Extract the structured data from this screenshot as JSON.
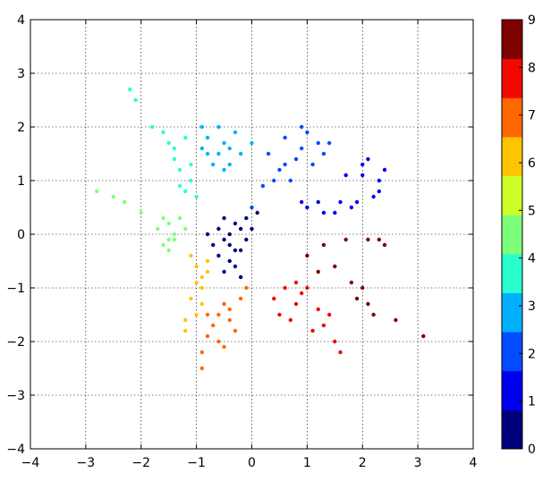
{
  "chart_data": {
    "type": "scatter",
    "title": "",
    "xlabel": "",
    "ylabel": "",
    "xlim": [
      -4,
      4
    ],
    "ylim": [
      -4,
      4
    ],
    "grid": true,
    "x_ticks": [
      -4,
      -3,
      -2,
      -1,
      0,
      1,
      2,
      3,
      4
    ],
    "y_ticks": [
      -4,
      -3,
      -2,
      -1,
      0,
      1,
      2,
      3,
      4
    ],
    "x_tick_labels": [
      "−4",
      "−3",
      "−2",
      "−1",
      "0",
      "1",
      "2",
      "3",
      "4"
    ],
    "y_tick_labels": [
      "−4",
      "−3",
      "−2",
      "−1",
      "0",
      "1",
      "2",
      "3",
      "4"
    ],
    "colormap": "jet",
    "colorbar": {
      "location": "right",
      "range": [
        0,
        9
      ],
      "ticks": [
        0,
        1,
        2,
        3,
        4,
        5,
        6,
        7,
        8,
        9
      ],
      "tick_labels": [
        "0",
        "1",
        "2",
        "3",
        "4",
        "5",
        "6",
        "7",
        "8",
        "9"
      ],
      "colors": [
        "#00007f",
        "#0000f1",
        "#004cff",
        "#00b0ff",
        "#29ffce",
        "#7dff7a",
        "#ceff29",
        "#ffc400",
        "#ff6700",
        "#f10800",
        "#7f0000"
      ]
    },
    "series": [
      {
        "class": 0,
        "color": "#00007f",
        "points": [
          [
            -0.3,
            0.2
          ],
          [
            -0.5,
            -0.1
          ],
          [
            -0.2,
            -0.3
          ],
          [
            -0.6,
            0.1
          ],
          [
            -0.4,
            -0.5
          ],
          [
            -0.1,
            0.3
          ],
          [
            -0.7,
            -0.2
          ],
          [
            -0.3,
            -0.6
          ],
          [
            0.0,
            0.1
          ],
          [
            -0.5,
            0.3
          ],
          [
            -0.2,
            -0.8
          ],
          [
            -0.6,
            -0.4
          ],
          [
            -0.4,
            0.0
          ],
          [
            -0.1,
            -0.1
          ],
          [
            -0.8,
            0.0
          ],
          [
            -0.3,
            -0.3
          ],
          [
            0.1,
            0.4
          ],
          [
            -0.5,
            -0.7
          ],
          [
            -0.2,
            0.1
          ],
          [
            -0.4,
            -0.2
          ]
        ]
      },
      {
        "class": 1,
        "color": "#0000f1",
        "points": [
          [
            1.5,
            0.4
          ],
          [
            1.0,
            0.5
          ],
          [
            2.0,
            1.3
          ],
          [
            2.3,
            1.0
          ],
          [
            2.2,
            0.7
          ],
          [
            1.8,
            0.5
          ],
          [
            1.3,
            0.4
          ],
          [
            2.4,
            1.2
          ],
          [
            1.7,
            1.1
          ],
          [
            1.2,
            0.6
          ],
          [
            2.1,
            1.4
          ],
          [
            1.9,
            0.6
          ],
          [
            0.9,
            0.6
          ],
          [
            2.3,
            0.8
          ],
          [
            1.6,
            0.6
          ],
          [
            2.0,
            1.1
          ]
        ]
      },
      {
        "class": 2,
        "color": "#004cff",
        "points": [
          [
            0.3,
            1.5
          ],
          [
            0.6,
            1.8
          ],
          [
            0.9,
            2.0
          ],
          [
            1.2,
            1.7
          ],
          [
            0.5,
            1.2
          ],
          [
            0.8,
            1.4
          ],
          [
            1.0,
            1.9
          ],
          [
            0.2,
            0.9
          ],
          [
            0.4,
            1.0
          ],
          [
            1.1,
            1.3
          ],
          [
            0.7,
            1.0
          ],
          [
            1.3,
            1.5
          ],
          [
            0.9,
            1.6
          ],
          [
            0.6,
            1.3
          ],
          [
            1.4,
            1.7
          ],
          [
            0.0,
            0.5
          ]
        ]
      },
      {
        "class": 3,
        "color": "#00b0ff",
        "points": [
          [
            -0.6,
            1.5
          ],
          [
            -0.8,
            1.8
          ],
          [
            -0.4,
            1.6
          ],
          [
            -0.9,
            2.0
          ],
          [
            -0.5,
            1.2
          ],
          [
            -0.3,
            1.9
          ],
          [
            -0.7,
            1.3
          ],
          [
            -0.2,
            1.5
          ],
          [
            -0.6,
            2.0
          ],
          [
            -0.4,
            1.3
          ],
          [
            -0.8,
            1.5
          ],
          [
            -0.5,
            1.7
          ],
          [
            0.0,
            1.7
          ],
          [
            -0.9,
            1.6
          ]
        ]
      },
      {
        "class": 4,
        "color": "#29ffce",
        "points": [
          [
            -1.5,
            1.7
          ],
          [
            -1.2,
            0.8
          ],
          [
            -1.3,
            1.2
          ],
          [
            -1.6,
            1.9
          ],
          [
            -1.1,
            1.0
          ],
          [
            -1.4,
            1.4
          ],
          [
            -1.2,
            1.8
          ],
          [
            -1.0,
            0.7
          ],
          [
            -1.8,
            2.0
          ],
          [
            -1.3,
            0.9
          ],
          [
            -2.1,
            2.5
          ],
          [
            -1.1,
            1.3
          ],
          [
            -1.4,
            1.6
          ],
          [
            -2.2,
            2.7
          ]
        ]
      },
      {
        "class": 5,
        "color": "#7dff7a",
        "points": [
          [
            -1.5,
            0.2
          ],
          [
            -1.6,
            -0.2
          ],
          [
            -1.4,
            0.0
          ],
          [
            -1.3,
            0.3
          ],
          [
            -1.5,
            -0.3
          ],
          [
            -1.7,
            0.1
          ],
          [
            -2.0,
            0.4
          ],
          [
            -2.5,
            0.7
          ],
          [
            -2.8,
            0.8
          ],
          [
            -1.4,
            -0.1
          ],
          [
            -1.2,
            0.1
          ],
          [
            -1.6,
            0.3
          ],
          [
            -2.3,
            0.6
          ],
          [
            -1.5,
            -0.1
          ]
        ]
      },
      {
        "class": 6,
        "color": "#ffc400",
        "points": [
          [
            -1.0,
            -0.6
          ],
          [
            -0.9,
            -1.0
          ],
          [
            -0.8,
            -0.5
          ],
          [
            -1.1,
            -1.2
          ],
          [
            -0.9,
            -0.8
          ],
          [
            -1.0,
            -1.5
          ],
          [
            -1.2,
            -1.8
          ],
          [
            -0.8,
            -0.7
          ],
          [
            -1.1,
            -0.4
          ],
          [
            -0.9,
            -1.3
          ],
          [
            -1.0,
            -0.9
          ],
          [
            -1.2,
            -1.6
          ]
        ]
      },
      {
        "class": 7,
        "color": "#ff6700",
        "points": [
          [
            -0.6,
            -1.5
          ],
          [
            -0.8,
            -1.9
          ],
          [
            -0.4,
            -1.6
          ],
          [
            -0.9,
            -2.2
          ],
          [
            -0.5,
            -1.3
          ],
          [
            -0.3,
            -1.8
          ],
          [
            -0.7,
            -1.7
          ],
          [
            -0.2,
            -1.2
          ],
          [
            -0.9,
            -2.5
          ],
          [
            -0.6,
            -2.0
          ],
          [
            -0.4,
            -1.4
          ],
          [
            -0.8,
            -1.5
          ],
          [
            -0.5,
            -2.1
          ],
          [
            -0.1,
            -1.0
          ]
        ]
      },
      {
        "class": 8,
        "color": "#f10800",
        "points": [
          [
            0.6,
            -1.0
          ],
          [
            0.8,
            -1.3
          ],
          [
            1.0,
            -1.0
          ],
          [
            0.5,
            -1.5
          ],
          [
            1.2,
            -1.4
          ],
          [
            0.7,
            -1.6
          ],
          [
            1.3,
            -1.7
          ],
          [
            0.9,
            -1.1
          ],
          [
            1.5,
            -2.0
          ],
          [
            0.4,
            -1.2
          ],
          [
            1.1,
            -1.8
          ],
          [
            1.6,
            -2.2
          ],
          [
            0.8,
            -0.9
          ],
          [
            1.4,
            -1.5
          ]
        ]
      },
      {
        "class": 9,
        "color": "#7f0000",
        "points": [
          [
            1.3,
            -0.2
          ],
          [
            1.7,
            -0.1
          ],
          [
            2.1,
            -0.1
          ],
          [
            2.3,
            -0.1
          ],
          [
            1.9,
            -1.2
          ],
          [
            2.1,
            -1.3
          ],
          [
            2.0,
            -1.0
          ],
          [
            2.2,
            -1.5
          ],
          [
            1.0,
            -0.4
          ],
          [
            1.5,
            -0.6
          ],
          [
            1.8,
            -0.9
          ],
          [
            2.4,
            -0.2
          ],
          [
            1.2,
            -0.7
          ],
          [
            2.6,
            -1.6
          ],
          [
            3.1,
            -1.9
          ]
        ]
      }
    ]
  }
}
